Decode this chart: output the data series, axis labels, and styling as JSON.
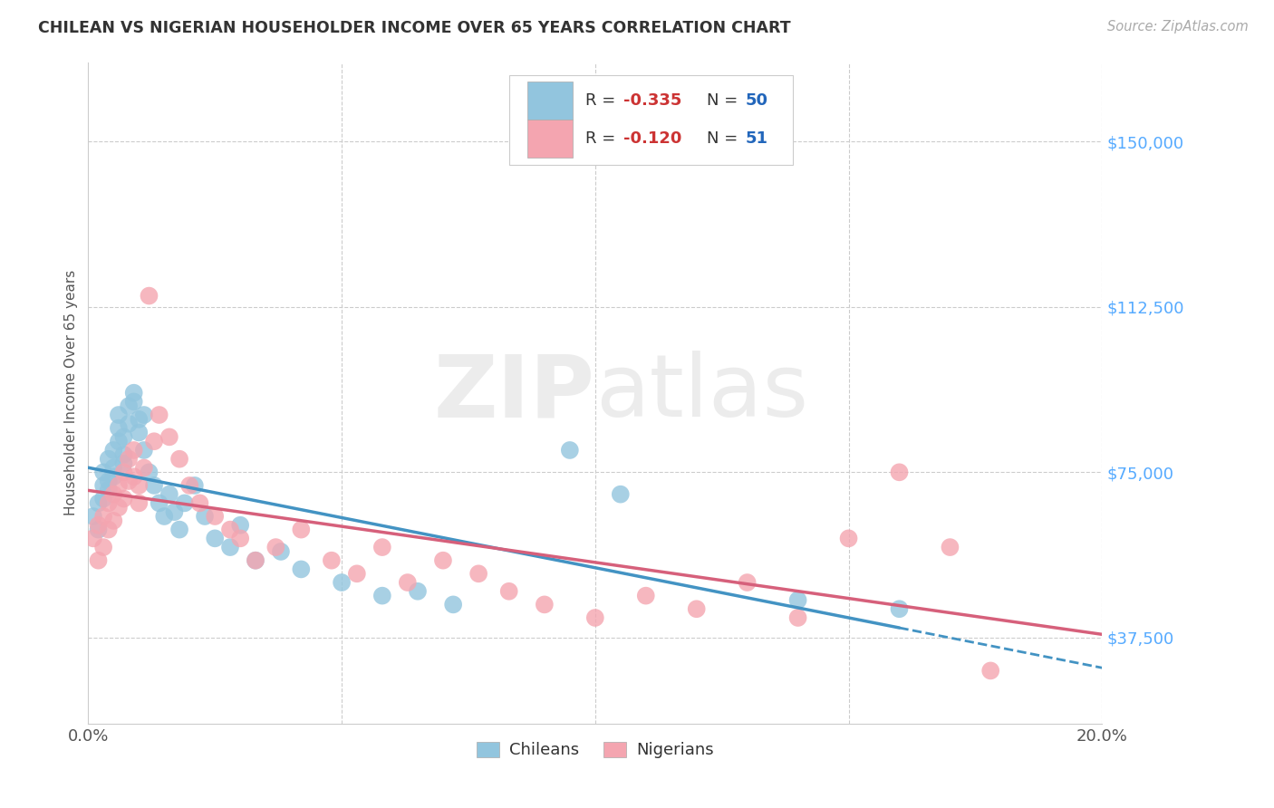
{
  "title": "CHILEAN VS NIGERIAN HOUSEHOLDER INCOME OVER 65 YEARS CORRELATION CHART",
  "source": "Source: ZipAtlas.com",
  "ylabel": "Householder Income Over 65 years",
  "xlim": [
    0.0,
    0.2
  ],
  "ylim": [
    18000,
    168000
  ],
  "yticks": [
    37500,
    75000,
    112500,
    150000
  ],
  "ytick_labels": [
    "$37,500",
    "$75,000",
    "$112,500",
    "$150,000"
  ],
  "xtick_labels": [
    "0.0%",
    "",
    "",
    "",
    "20.0%"
  ],
  "chilean_color": "#92c5de",
  "nigerian_color": "#f4a5b0",
  "chilean_line_color": "#4393c3",
  "nigerian_line_color": "#d6607b",
  "background_color": "#ffffff",
  "grid_color": "#cccccc",
  "watermark_zip": "ZIP",
  "watermark_atlas": "atlas",
  "chilean_x": [
    0.001,
    0.002,
    0.002,
    0.003,
    0.003,
    0.003,
    0.004,
    0.004,
    0.004,
    0.005,
    0.005,
    0.005,
    0.006,
    0.006,
    0.006,
    0.007,
    0.007,
    0.007,
    0.008,
    0.008,
    0.009,
    0.009,
    0.01,
    0.01,
    0.011,
    0.011,
    0.012,
    0.013,
    0.014,
    0.015,
    0.016,
    0.017,
    0.018,
    0.019,
    0.021,
    0.023,
    0.025,
    0.028,
    0.03,
    0.033,
    0.038,
    0.042,
    0.05,
    0.058,
    0.065,
    0.072,
    0.095,
    0.105,
    0.14,
    0.16
  ],
  "chilean_y": [
    65000,
    68000,
    62000,
    72000,
    69000,
    75000,
    71000,
    78000,
    73000,
    80000,
    76000,
    74000,
    85000,
    88000,
    82000,
    79000,
    83000,
    77000,
    90000,
    86000,
    91000,
    93000,
    87000,
    84000,
    88000,
    80000,
    75000,
    72000,
    68000,
    65000,
    70000,
    66000,
    62000,
    68000,
    72000,
    65000,
    60000,
    58000,
    63000,
    55000,
    57000,
    53000,
    50000,
    47000,
    48000,
    45000,
    80000,
    70000,
    46000,
    44000
  ],
  "nigerian_x": [
    0.001,
    0.002,
    0.002,
    0.003,
    0.003,
    0.004,
    0.004,
    0.005,
    0.005,
    0.006,
    0.006,
    0.007,
    0.007,
    0.008,
    0.008,
    0.009,
    0.009,
    0.01,
    0.01,
    0.011,
    0.012,
    0.013,
    0.014,
    0.016,
    0.018,
    0.02,
    0.022,
    0.025,
    0.028,
    0.03,
    0.033,
    0.037,
    0.042,
    0.048,
    0.053,
    0.058,
    0.063,
    0.07,
    0.077,
    0.083,
    0.09,
    0.1,
    0.11,
    0.12,
    0.13,
    0.14,
    0.15,
    0.16,
    0.17,
    0.178
  ],
  "nigerian_y": [
    60000,
    55000,
    63000,
    58000,
    65000,
    62000,
    68000,
    64000,
    70000,
    67000,
    72000,
    75000,
    69000,
    73000,
    78000,
    80000,
    74000,
    68000,
    72000,
    76000,
    115000,
    82000,
    88000,
    83000,
    78000,
    72000,
    68000,
    65000,
    62000,
    60000,
    55000,
    58000,
    62000,
    55000,
    52000,
    58000,
    50000,
    55000,
    52000,
    48000,
    45000,
    42000,
    47000,
    44000,
    50000,
    42000,
    60000,
    75000,
    58000,
    30000
  ]
}
